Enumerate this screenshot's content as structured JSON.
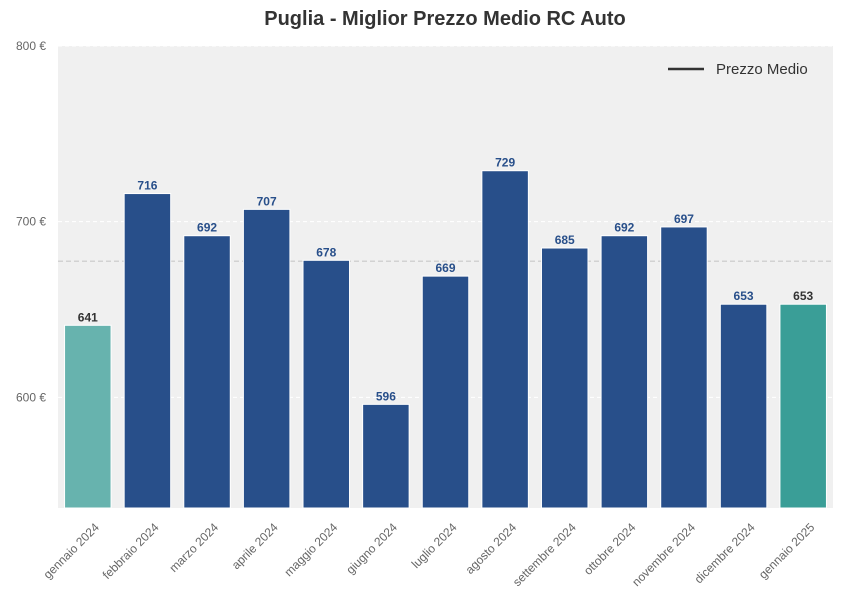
{
  "chart_data": {
    "type": "bar",
    "title": "Puglia - Miglior Prezzo Medio RC Auto",
    "xlabel": "",
    "ylabel": "",
    "categories": [
      "gennaio 2024",
      "febbraio 2024",
      "marzo 2024",
      "aprile 2024",
      "maggio 2024",
      "giugno 2024",
      "luglio 2024",
      "agosto 2024",
      "settembre 2024",
      "ottobre 2024",
      "novembre 2024",
      "dicembre 2024",
      "gennaio 2025"
    ],
    "values": [
      641,
      716,
      692,
      707,
      678,
      596,
      669,
      729,
      685,
      692,
      697,
      653,
      653
    ],
    "ylim": [
      537,
      800
    ],
    "yticks": [
      600,
      700,
      800
    ],
    "ytick_labels": [
      "600 €",
      "700 €",
      "800 €"
    ],
    "average": 677.5,
    "legend": {
      "position": "top-right",
      "entries": [
        "Prezzo Medio"
      ]
    },
    "grid": true,
    "colors": {
      "bar": "#284f8a",
      "first_bar": "#67b3ae",
      "last_bar": "#3a9e97",
      "label_blue": "#284f8a",
      "label_dark": "#333333",
      "plot_bg": "#f0f0f0",
      "avg_line": "#c8c8c8",
      "legend_line": "#333333"
    }
  }
}
